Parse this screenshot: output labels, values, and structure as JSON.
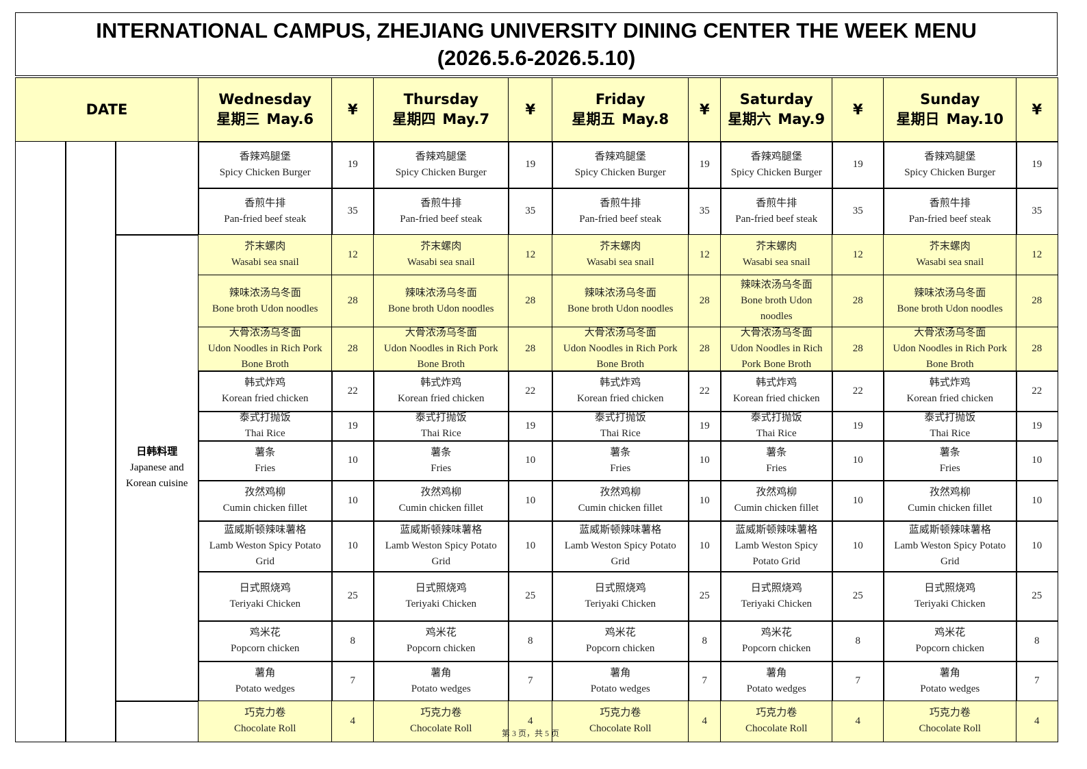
{
  "title": [
    "INTERNATIONAL CAMPUS, ZHEJIANG UNIVERSITY DINING CENTER THE WEEK MENU",
    "(2026.5.6-2026.5.10)"
  ],
  "header": {
    "date": "DATE",
    "currency": "¥",
    "days": [
      {
        "day": "Wednesday",
        "zh": "星期三",
        "date": "May.6"
      },
      {
        "day": "Thursday",
        "zh": "星期四",
        "date": "May.7"
      },
      {
        "day": "Friday",
        "zh": "星期五",
        "date": "May.8"
      },
      {
        "day": "Saturday",
        "zh": "星期六",
        "date": "May.9"
      },
      {
        "day": "Sunday",
        "zh": "星期日",
        "date": "May.10"
      }
    ]
  },
  "category": {
    "zh": "日韩料理",
    "en": "Japanese and Korean cuisine"
  },
  "rows": [
    {
      "items": [
        {
          "zh": "香辣鸡腿堡",
          "en": "Spicy Chicken Burger",
          "price": 19
        },
        {
          "zh": "香辣鸡腿堡",
          "en": "Spicy Chicken Burger",
          "price": 19
        },
        {
          "zh": "香辣鸡腿堡",
          "en": "Spicy Chicken Burger",
          "price": 19
        },
        {
          "zh": "香辣鸡腿堡",
          "en": "Spicy Chicken Burger",
          "price": 19
        },
        {
          "zh": "香辣鸡腿堡",
          "en": "Spicy Chicken Burger",
          "price": 19
        }
      ]
    },
    {
      "items": [
        {
          "zh": "香煎牛排",
          "en": "Pan-fried beef steak",
          "price": 35
        },
        {
          "zh": "香煎牛排",
          "en": "Pan-fried beef steak",
          "price": 35
        },
        {
          "zh": "香煎牛排",
          "en": "Pan-fried beef steak",
          "price": 35
        },
        {
          "zh": "香煎牛排",
          "en": "Pan-fried beef steak",
          "price": 35
        },
        {
          "zh": "香煎牛排",
          "en": "Pan-fried beef steak",
          "price": 35
        }
      ]
    },
    {
      "highlight": true,
      "items": [
        {
          "zh": "芥末螺肉",
          "en": "Wasabi sea snail",
          "price": 12
        },
        {
          "zh": "芥末螺肉",
          "en": "Wasabi sea snail",
          "price": 12
        },
        {
          "zh": "芥末螺肉",
          "en": "Wasabi sea snail",
          "price": 12
        },
        {
          "zh": "芥末螺肉",
          "en": "Wasabi sea snail",
          "price": 12
        },
        {
          "zh": "芥末螺肉",
          "en": "Wasabi sea snail",
          "price": 12
        }
      ]
    },
    {
      "highlight": true,
      "items": [
        {
          "zh": "辣味浓汤乌冬面",
          "en": "Bone broth Udon noodles",
          "price": 28
        },
        {
          "zh": "辣味浓汤乌冬面",
          "en": "Bone broth Udon noodles",
          "price": 28
        },
        {
          "zh": "辣味浓汤乌冬面",
          "en": "Bone broth Udon noodles",
          "price": 28
        },
        {
          "zh": "辣味浓汤乌冬面",
          "en": "Bone broth Udon noodles",
          "price": 28
        },
        {
          "zh": "辣味浓汤乌冬面",
          "en": "Bone broth Udon noodles",
          "price": 28
        }
      ]
    },
    {
      "highlight": true,
      "items": [
        {
          "zh": "大骨浓汤乌冬面",
          "en": "Udon Noodles in Rich Pork Bone Broth",
          "price": 28
        },
        {
          "zh": "大骨浓汤乌冬面",
          "en": "Udon Noodles in Rich Pork Bone Broth",
          "price": 28
        },
        {
          "zh": "大骨浓汤乌冬面",
          "en": "Udon Noodles in Rich Pork Bone Broth",
          "price": 28
        },
        {
          "zh": "大骨浓汤乌冬面",
          "en": "Udon Noodles in Rich Pork Bone Broth",
          "price": 28
        },
        {
          "zh": "大骨浓汤乌冬面",
          "en": "Udon Noodles in Rich Pork Bone Broth",
          "price": 28
        }
      ]
    },
    {
      "items": [
        {
          "zh": "韩式炸鸡",
          "en": "Korean fried chicken",
          "price": 22
        },
        {
          "zh": "韩式炸鸡",
          "en": "Korean fried chicken",
          "price": 22
        },
        {
          "zh": "韩式炸鸡",
          "en": "Korean fried chicken",
          "price": 22
        },
        {
          "zh": "韩式炸鸡",
          "en": "Korean fried chicken",
          "price": 22
        },
        {
          "zh": "韩式炸鸡",
          "en": "Korean fried chicken",
          "price": 22
        }
      ]
    },
    {
      "items": [
        {
          "zh": "泰式打抛饭",
          "en": "Thai Rice",
          "price": 19
        },
        {
          "zh": "泰式打抛饭",
          "en": "Thai Rice",
          "price": 19
        },
        {
          "zh": "泰式打抛饭",
          "en": "Thai Rice",
          "price": 19
        },
        {
          "zh": "泰式打抛饭",
          "en": "Thai Rice",
          "price": 19
        },
        {
          "zh": "泰式打抛饭",
          "en": "Thai Rice",
          "price": 19
        }
      ]
    },
    {
      "items": [
        {
          "zh": "薯条",
          "en": "Fries",
          "price": 10
        },
        {
          "zh": "薯条",
          "en": "Fries",
          "price": 10
        },
        {
          "zh": "薯条",
          "en": "Fries",
          "price": 10
        },
        {
          "zh": "薯条",
          "en": "Fries",
          "price": 10
        },
        {
          "zh": "薯条",
          "en": "Fries",
          "price": 10
        }
      ]
    },
    {
      "items": [
        {
          "zh": "孜然鸡柳",
          "en": "Cumin chicken fillet",
          "price": 10
        },
        {
          "zh": "孜然鸡柳",
          "en": "Cumin chicken fillet",
          "price": 10
        },
        {
          "zh": "孜然鸡柳",
          "en": "Cumin chicken fillet",
          "price": 10
        },
        {
          "zh": "孜然鸡柳",
          "en": "Cumin chicken fillet",
          "price": 10
        },
        {
          "zh": "孜然鸡柳",
          "en": "Cumin chicken fillet",
          "price": 10
        }
      ]
    },
    {
      "items": [
        {
          "zh": "蓝威斯顿辣味薯格",
          "en": "Lamb Weston Spicy Potato Grid",
          "price": 10
        },
        {
          "zh": "蓝威斯顿辣味薯格",
          "en": "Lamb Weston Spicy Potato Grid",
          "price": 10
        },
        {
          "zh": "蓝威斯顿辣味薯格",
          "en": "Lamb Weston Spicy Potato Grid",
          "price": 10
        },
        {
          "zh": "蓝威斯顿辣味薯格",
          "en": "Lamb Weston Spicy Potato Grid",
          "price": 10
        },
        {
          "zh": "蓝威斯顿辣味薯格",
          "en": "Lamb Weston Spicy Potato Grid",
          "price": 10
        }
      ]
    },
    {
      "items": [
        {
          "zh": "日式照烧鸡",
          "en": "Teriyaki Chicken",
          "price": 25
        },
        {
          "zh": "日式照烧鸡",
          "en": "Teriyaki Chicken",
          "price": 25
        },
        {
          "zh": "日式照烧鸡",
          "en": "Teriyaki Chicken",
          "price": 25
        },
        {
          "zh": "日式照烧鸡",
          "en": "Teriyaki Chicken",
          "price": 25
        },
        {
          "zh": "日式照烧鸡",
          "en": "Teriyaki Chicken",
          "price": 25
        }
      ]
    },
    {
      "items": [
        {
          "zh": "鸡米花",
          "en": "Popcorn chicken",
          "price": 8
        },
        {
          "zh": "鸡米花",
          "en": "Popcorn chicken",
          "price": 8
        },
        {
          "zh": "鸡米花",
          "en": "Popcorn chicken",
          "price": 8
        },
        {
          "zh": "鸡米花",
          "en": "Popcorn chicken",
          "price": 8
        },
        {
          "zh": "鸡米花",
          "en": "Popcorn chicken",
          "price": 8
        }
      ]
    },
    {
      "items": [
        {
          "zh": "薯角",
          "en": "Potato wedges",
          "price": 7
        },
        {
          "zh": "薯角",
          "en": "Potato wedges",
          "price": 7
        },
        {
          "zh": "薯角",
          "en": "Potato wedges",
          "price": 7
        },
        {
          "zh": "薯角",
          "en": "Potato wedges",
          "price": 7
        },
        {
          "zh": "薯角",
          "en": "Potato wedges",
          "price": 7
        }
      ]
    },
    {
      "highlight": true,
      "items": [
        {
          "zh": "巧克力卷",
          "en": "Chocolate Roll",
          "price": 4
        },
        {
          "zh": "巧克力卷",
          "en": "Chocolate Roll",
          "price": 4
        },
        {
          "zh": "巧克力卷",
          "en": "Chocolate Roll",
          "price": 4
        },
        {
          "zh": "巧克力卷",
          "en": "Chocolate Roll",
          "price": 4
        },
        {
          "zh": "巧克力卷",
          "en": "Chocolate Roll",
          "price": 4
        }
      ]
    }
  ],
  "footer": "第 3 页，共 5 页"
}
